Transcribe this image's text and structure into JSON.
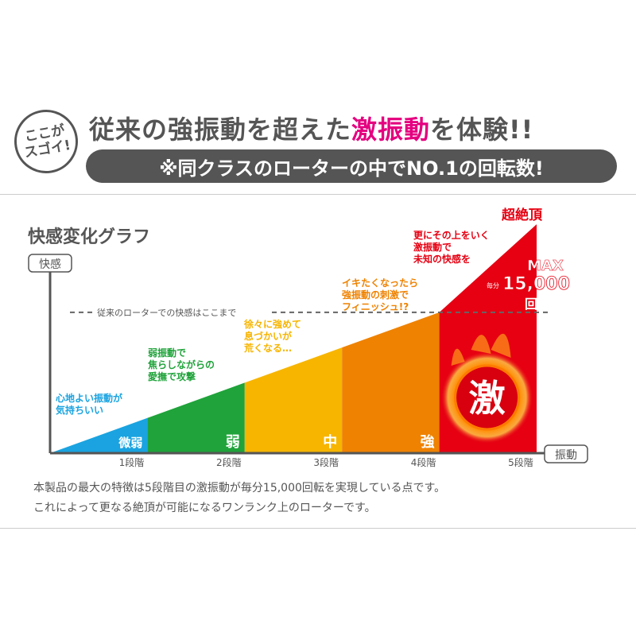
{
  "header": {
    "badge_lines": [
      "ここが",
      "スゴイ!"
    ],
    "title_before": "従来の強振動を超えた",
    "title_highlight": "激振動",
    "title_after": "を体験!!",
    "subtitle": "※同クラスのローターの中でNO.1の回転数!",
    "highlight_color": "#e4007f"
  },
  "chart_data": {
    "type": "area",
    "title": "快感変化グラフ",
    "ylabel": "快感",
    "xlabel": "振動",
    "categories": [
      "1段階",
      "2段階",
      "3段階",
      "4段階",
      "5段階"
    ],
    "segment_labels": [
      "微弱",
      "弱",
      "中",
      "強",
      "激"
    ],
    "values": [
      1,
      2,
      3,
      4,
      6.5
    ],
    "ylim": [
      0,
      7
    ],
    "colors": [
      "#1aa3e0",
      "#1fa33a",
      "#f7b500",
      "#ef8200",
      "#e60012"
    ],
    "reference_line_label": "従来のローターでの快感はここまで",
    "reference_line_value": 4,
    "grid": false,
    "annotations": [
      {
        "lines": [
          "心地よい振動が",
          "気持ちいい"
        ],
        "color": "#1aa3e0"
      },
      {
        "lines": [
          "弱振動で",
          "焦らしながらの",
          "愛撫で攻撃"
        ],
        "color": "#1fa33a"
      },
      {
        "lines": [
          "徐々に強めて",
          "息づかいが",
          "荒くなる…"
        ],
        "color": "#f7b500"
      },
      {
        "lines": [
          "イキたくなったら",
          "強振動の刺激で",
          "フィニッシュ!?"
        ],
        "color": "#ef8200"
      },
      {
        "lines": [
          "更にその上をいく",
          "激振動で",
          "未知の快感を"
        ],
        "color": "#e60012"
      }
    ],
    "peak_label": "超絶頂",
    "max_label": "MAX",
    "max_prefix": "毎分",
    "max_value": "15,000",
    "max_unit": "回転"
  },
  "description": [
    "本製品の最大の特徴は5段階目の激振動が毎分15,000回転を実現している点です。",
    "これによって更なる絶頂が可能になるワンランク上のローターです。"
  ]
}
